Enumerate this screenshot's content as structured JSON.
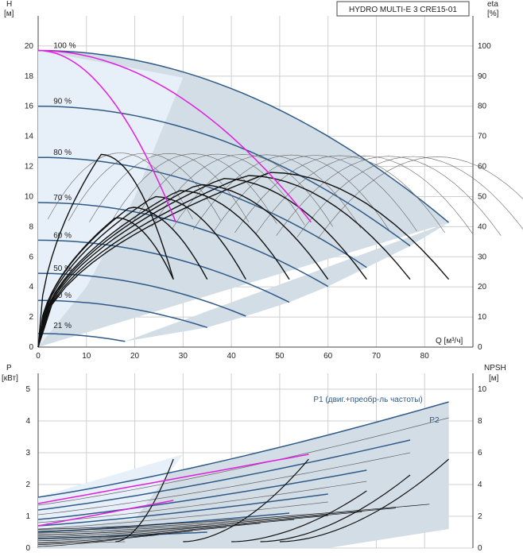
{
  "title": "HYDRO MULTI-E 3 CRE15-01",
  "colors": {
    "grid": "#cfcfcf",
    "region": "#d3dde6",
    "region_light": "#e7f0f8",
    "curve_dark": "#2f5a87",
    "curve_black": "#111111",
    "curve_thin": "#666666",
    "magenta": "#e020e0"
  },
  "chart_data": [
    {
      "type": "line",
      "name": "head_efficiency",
      "y_left_label": [
        "H",
        "[м]"
      ],
      "y_right_label": [
        "eta",
        "[%]"
      ],
      "x_label": "Q [м³/ч]",
      "xlim": [
        0,
        90
      ],
      "ylim": [
        0,
        22
      ],
      "y2lim": [
        0,
        110
      ],
      "x_ticks": [
        0,
        10,
        20,
        30,
        40,
        50,
        60,
        70,
        80
      ],
      "y_ticks": [
        0,
        2,
        4,
        6,
        8,
        10,
        12,
        14,
        16,
        18,
        20
      ],
      "y2_ticks": [
        0,
        10,
        20,
        30,
        40,
        50,
        60,
        70,
        80,
        90,
        100
      ],
      "speed_labels": [
        {
          "text": "100 %",
          "x": 2.5,
          "y": 19.7
        },
        {
          "text": "90 %",
          "x": 2.5,
          "y": 16.0
        },
        {
          "text": "80 %",
          "x": 2.5,
          "y": 12.6
        },
        {
          "text": "70 %",
          "x": 2.5,
          "y": 9.6
        },
        {
          "text": "60 %",
          "x": 2.5,
          "y": 7.1
        },
        {
          "text": "50 %",
          "x": 2.5,
          "y": 4.9
        },
        {
          "text": "40 %",
          "x": 2.5,
          "y": 3.1
        },
        {
          "text": "21 %",
          "x": 2.5,
          "y": 1.1
        }
      ],
      "speed_curves": [
        {
          "speed": 1.0,
          "h0": 19.7,
          "qmax": 85
        },
        {
          "speed": 0.9,
          "h0": 16.0,
          "qmax": 77
        },
        {
          "speed": 0.8,
          "h0": 12.6,
          "qmax": 68
        },
        {
          "speed": 0.7,
          "h0": 9.6,
          "qmax": 60
        },
        {
          "speed": 0.6,
          "h0": 7.1,
          "qmax": 52
        },
        {
          "speed": 0.5,
          "h0": 4.9,
          "qmax": 43
        },
        {
          "speed": 0.4,
          "h0": 3.1,
          "qmax": 35
        },
        {
          "speed": 0.21,
          "h0": 0.9,
          "qmax": 18
        }
      ],
      "efficiency_curves_black": [
        {
          "q_end": 85,
          "peak_q": 48,
          "peak_h": 11.6
        },
        {
          "q_end": 77,
          "peak_q": 43,
          "peak_h": 11.4
        },
        {
          "q_end": 68,
          "peak_q": 38,
          "peak_h": 11.2
        },
        {
          "q_end": 60,
          "peak_q": 33,
          "peak_h": 10.8
        },
        {
          "q_end": 52,
          "peak_q": 29,
          "peak_h": 10.4
        },
        {
          "q_end": 43,
          "peak_q": 24,
          "peak_h": 10.0
        },
        {
          "q_end": 35,
          "peak_q": 19,
          "peak_h": 9.3
        },
        {
          "q_end": 28,
          "peak_q": 16,
          "peak_h": 8.6
        },
        {
          "q_end": 28,
          "peak_q": 13,
          "peak_h": 12.8
        }
      ],
      "magenta_curves": [
        {
          "h0": 19.7,
          "q_end": 28.5,
          "h_end": 8.3
        },
        {
          "h0": 19.7,
          "q_end": 56.5,
          "h_end": 8.3
        }
      ]
    },
    {
      "type": "line",
      "name": "power_npsh",
      "y_left_label": [
        "P",
        "[кВт]"
      ],
      "y_right_label": [
        "NPSH",
        "[м]"
      ],
      "xlim": [
        0,
        90
      ],
      "ylim": [
        0,
        5.5
      ],
      "y2lim": [
        0,
        11
      ],
      "y_ticks": [
        0,
        1,
        2,
        3,
        4,
        5
      ],
      "y2_ticks": [
        0,
        2,
        4,
        6,
        8,
        10
      ],
      "series_labels": [
        {
          "text": "P1 (двиг.+преобр-ль частоты)",
          "x": 57,
          "y": 4.6
        },
        {
          "text": "P2",
          "x": 81,
          "y": 3.95
        }
      ],
      "power_curves": [
        {
          "p0": 1.6,
          "q_end": 85,
          "p_end": 4.6
        },
        {
          "p0": 1.35,
          "q_end": 85,
          "p_end": 4.1
        },
        {
          "p0": 1.2,
          "q_end": 77,
          "p_end": 3.4
        },
        {
          "p0": 1.05,
          "q_end": 77,
          "p_end": 3.0
        },
        {
          "p0": 0.9,
          "q_end": 68,
          "p_end": 2.45
        },
        {
          "p0": 0.8,
          "q_end": 68,
          "p_end": 2.1
        },
        {
          "p0": 0.7,
          "q_end": 60,
          "p_end": 1.7
        },
        {
          "p0": 0.6,
          "q_end": 60,
          "p_end": 1.45
        },
        {
          "p0": 0.5,
          "q_end": 52,
          "p_end": 1.1
        },
        {
          "p0": 0.4,
          "q_end": 43,
          "p_end": 0.75
        },
        {
          "p0": 0.3,
          "q_end": 35,
          "p_end": 0.5
        },
        {
          "p0": 0.15,
          "q_end": 18,
          "p_end": 0.2
        }
      ],
      "npsh_curves": [
        {
          "q_start": 16,
          "q_end": 28,
          "n_start": 0.4,
          "n_end": 5.6
        },
        {
          "q_start": 30,
          "q_end": 56,
          "n_start": 0.4,
          "n_end": 5.6
        },
        {
          "q_start": 40,
          "q_end": 68,
          "n_start": 0.4,
          "n_end": 3.6
        },
        {
          "q_start": 46,
          "q_end": 77,
          "n_start": 0.4,
          "n_end": 4.6
        },
        {
          "q_start": 50,
          "q_end": 85,
          "n_start": 0.4,
          "n_end": 5.6
        }
      ],
      "magenta_curves": [
        {
          "p0": 0.7,
          "q_end": 28,
          "p_end": 1.5
        },
        {
          "p0": 1.4,
          "q_end": 56,
          "p_end": 2.95
        }
      ]
    }
  ]
}
